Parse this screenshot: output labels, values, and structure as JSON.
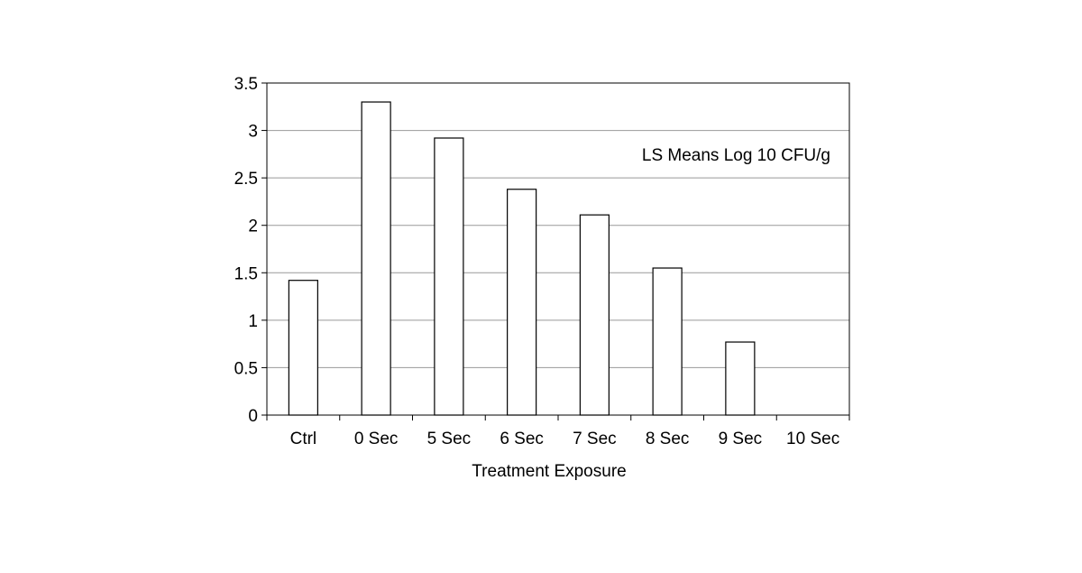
{
  "chart_data": {
    "type": "bar",
    "categories": [
      "Ctrl",
      "0 Sec",
      "5 Sec",
      "6 Sec",
      "7 Sec",
      "8 Sec",
      "9 Sec",
      "10 Sec"
    ],
    "values": [
      1.42,
      3.3,
      2.92,
      2.38,
      2.11,
      1.55,
      0.77,
      0
    ],
    "y_ticks": [
      "0",
      "0.5",
      "1",
      "1.5",
      "2",
      "2.5",
      "3",
      "3.5"
    ],
    "ylim": [
      0,
      3.5
    ],
    "xlabel": "Treatment Exposure",
    "ylabel": "",
    "annotation": "LS Means Log 10 CFU/g",
    "grid": true,
    "colors": {
      "bar_fill": "#ffffff",
      "bar_stroke": "#000000",
      "grid": "#999999",
      "axis": "#000000"
    }
  }
}
